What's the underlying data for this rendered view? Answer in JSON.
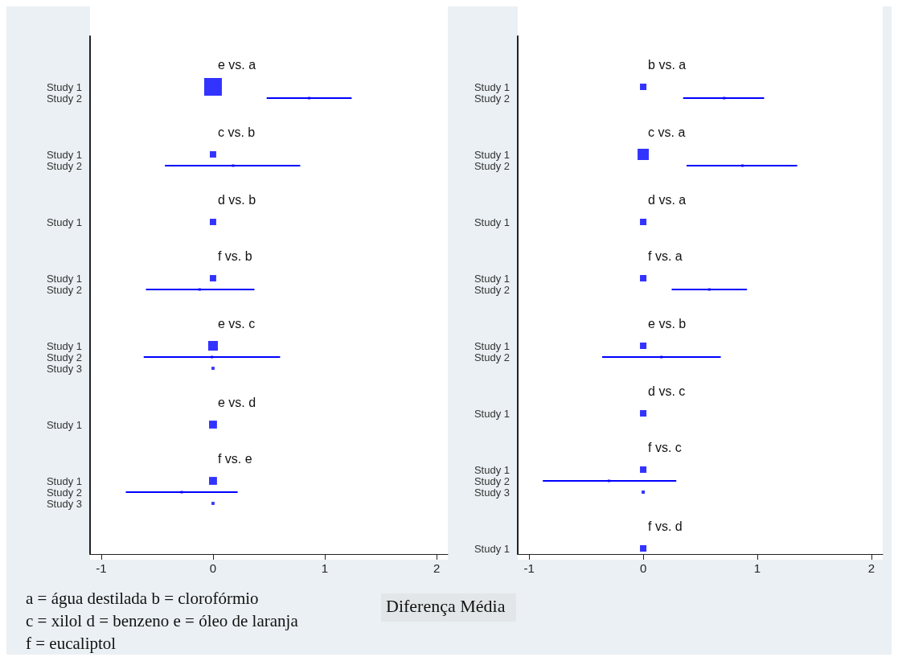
{
  "chart_data": [
    {
      "type": "bubble",
      "orientation": "horizontal",
      "xlabel": "Diferença Média",
      "annotations": [
        "a =  água destilada b = clorofórmio",
        "c = xilol d = benzeno e = óleo de laranja",
        "f = eucaliptol"
      ],
      "categories": [
        null,
        null,
        "e vs. a",
        null,
        "Study 1",
        "Study 2",
        null,
        null,
        "c vs. b",
        null,
        "Study 1",
        "Study 2",
        null,
        null,
        "d vs. b",
        null,
        "Study 1",
        null,
        null,
        "f vs. b",
        null,
        "Study 1",
        "Study 2",
        null,
        null,
        "e vs. c",
        null,
        "Study 1",
        "Study 2",
        "Study 3",
        null,
        null,
        "e vs. d",
        null,
        "Study 1",
        null,
        null,
        "f vs. e",
        null,
        "Study 1",
        "Study 2",
        "Study 3",
        null,
        null,
        null,
        null
      ],
      "xlim": [
        -1.1,
        2.1
      ],
      "xticks": [
        -1,
        0,
        1,
        2
      ],
      "marker": "square",
      "grid": false,
      "series": [
        {
          "color": "#0000ff",
          "values": [
            null,
            null,
            null,
            null,
            0,
            0.86,
            null,
            null,
            null,
            null,
            0,
            0.18,
            null,
            null,
            null,
            null,
            0,
            null,
            null,
            null,
            null,
            0,
            -0.12,
            null,
            null,
            null,
            null,
            0,
            -0.01,
            0,
            null,
            null,
            null,
            null,
            0,
            null,
            null,
            null,
            null,
            0,
            -0.28,
            0,
            null,
            null,
            null,
            null
          ],
          "sizes": [
            null,
            null,
            null,
            null,
            1,
            0.02,
            null,
            null,
            null,
            null,
            0.13,
            0.02,
            null,
            null,
            null,
            null,
            0.13,
            null,
            null,
            null,
            null,
            0.13,
            0.02,
            null,
            null,
            null,
            null,
            0.3,
            0.02,
            0.03,
            null,
            null,
            null,
            null,
            0.2,
            null,
            null,
            null,
            null,
            0.2,
            0.02,
            0.03,
            null,
            null,
            null,
            null
          ],
          "errors": [
            null,
            null,
            null,
            null,
            null,
            [
              0.48,
              1.24
            ],
            null,
            null,
            null,
            null,
            null,
            [
              -0.43,
              0.78
            ],
            null,
            null,
            null,
            null,
            null,
            null,
            null,
            null,
            null,
            null,
            [
              -0.6,
              0.37
            ],
            null,
            null,
            null,
            null,
            null,
            [
              -0.62,
              0.6
            ],
            null,
            null,
            null,
            null,
            null,
            null,
            null,
            null,
            null,
            null,
            null,
            [
              -0.78,
              0.22
            ],
            null,
            null,
            null,
            null,
            null
          ]
        }
      ]
    },
    {
      "type": "bubble",
      "orientation": "horizontal",
      "categories": [
        null,
        null,
        "b vs. a",
        null,
        "Study 1",
        "Study 2",
        null,
        null,
        "c vs. a",
        null,
        "Study 1",
        "Study 2",
        null,
        null,
        "d vs. a",
        null,
        "Study 1",
        null,
        null,
        "f vs. a",
        null,
        "Study 1",
        "Study 2",
        null,
        null,
        "e vs. b",
        null,
        "Study 1",
        "Study 2",
        null,
        null,
        "d vs. c",
        null,
        "Study 1",
        null,
        null,
        "f vs. c",
        null,
        "Study 1",
        "Study 2",
        "Study 3",
        null,
        null,
        "f vs. d",
        null,
        "Study 1"
      ],
      "xlim": [
        -1.1,
        2.1
      ],
      "xticks": [
        -1,
        0,
        1,
        2
      ],
      "marker": "square",
      "grid": false,
      "series": [
        {
          "color": "#0000ff",
          "values": [
            null,
            null,
            null,
            null,
            0,
            0.71,
            null,
            null,
            null,
            null,
            0,
            0.87,
            null,
            null,
            null,
            null,
            0,
            null,
            null,
            null,
            null,
            0,
            0.58,
            null,
            null,
            null,
            null,
            0,
            0.16,
            null,
            null,
            null,
            null,
            0,
            null,
            null,
            null,
            null,
            0,
            -0.3,
            0,
            null,
            null,
            null,
            null,
            0
          ],
          "sizes": [
            null,
            null,
            null,
            null,
            0.33,
            0.05,
            null,
            null,
            null,
            null,
            1,
            0.05,
            null,
            null,
            null,
            null,
            0.33,
            null,
            null,
            null,
            null,
            0.33,
            0.05,
            null,
            null,
            null,
            null,
            0.33,
            0.05,
            null,
            null,
            null,
            null,
            0.33,
            null,
            null,
            null,
            null,
            0.33,
            0.05,
            0.08,
            null,
            null,
            null,
            null,
            0.33
          ],
          "errors": [
            null,
            null,
            null,
            null,
            null,
            [
              0.35,
              1.06
            ],
            null,
            null,
            null,
            null,
            null,
            [
              0.38,
              1.35
            ],
            null,
            null,
            null,
            null,
            null,
            null,
            null,
            null,
            null,
            null,
            [
              0.25,
              0.91
            ],
            null,
            null,
            null,
            null,
            null,
            [
              -0.36,
              0.68
            ],
            null,
            null,
            null,
            null,
            null,
            null,
            null,
            null,
            null,
            null,
            [
              -0.88,
              0.29
            ],
            null,
            null,
            null,
            null,
            null,
            null
          ]
        }
      ]
    }
  ]
}
